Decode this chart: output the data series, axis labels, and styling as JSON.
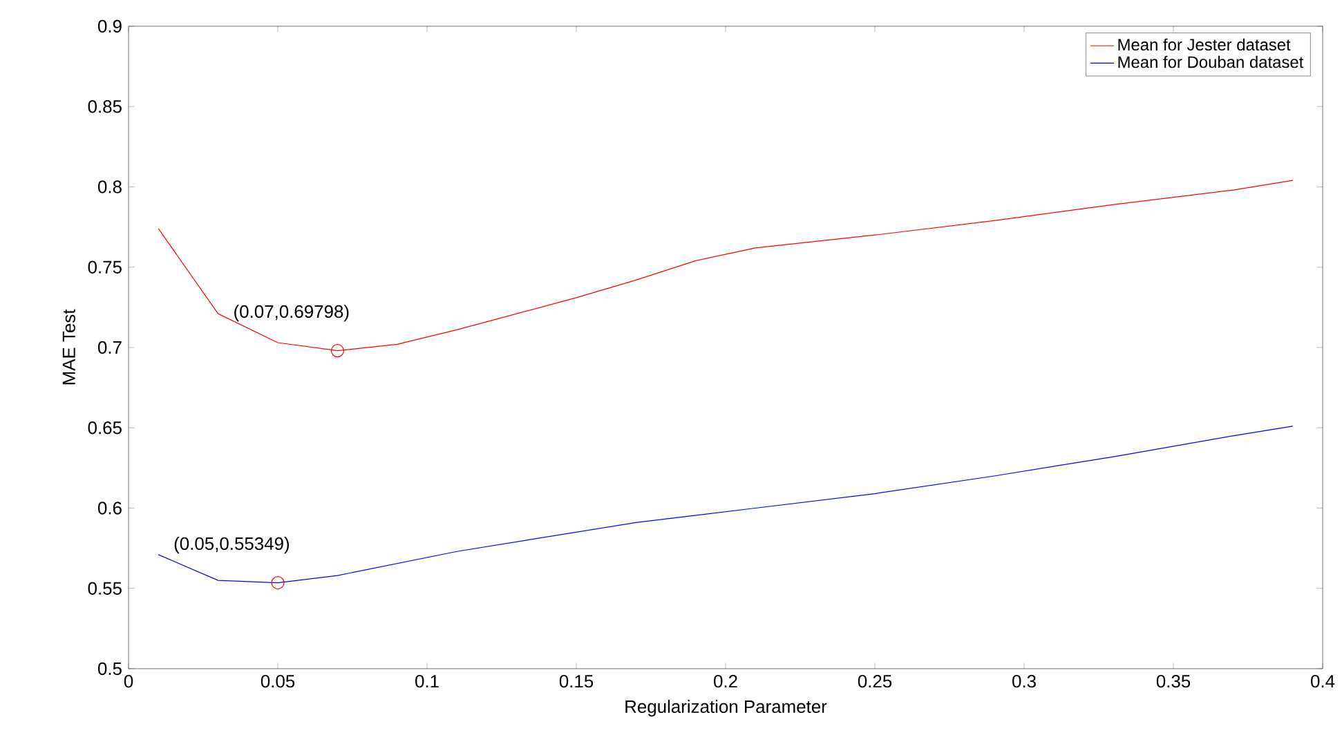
{
  "chart_data": {
    "type": "line",
    "xlabel": "Regularization Parameter",
    "ylabel": "MAE Test",
    "xlim": [
      0,
      0.4
    ],
    "xticks": [
      0,
      0.05,
      0.1,
      0.15,
      0.2,
      0.25,
      0.3,
      0.35,
      0.4
    ],
    "ylim": [
      0.5,
      0.9
    ],
    "yticks": [
      0.5,
      0.55,
      0.6,
      0.65,
      0.7,
      0.75,
      0.8,
      0.85,
      0.9
    ],
    "grid": false,
    "legend": "top right",
    "series": [
      {
        "name": "Mean for Jester dataset",
        "color": "#ff0000",
        "x": [
          0.01,
          0.03,
          0.05,
          0.07,
          0.09,
          0.11,
          0.13,
          0.15,
          0.17,
          0.19,
          0.21,
          0.25,
          0.29,
          0.33,
          0.37,
          0.39
        ],
        "values": [
          0.774,
          0.721,
          0.703,
          0.69798,
          0.702,
          0.711,
          0.721,
          0.731,
          0.742,
          0.754,
          0.762,
          0.77,
          0.779,
          0.789,
          0.798,
          0.804
        ]
      },
      {
        "name": "Mean for Douban dataset",
        "color": "#0000ff",
        "x": [
          0.01,
          0.03,
          0.05,
          0.07,
          0.11,
          0.17,
          0.21,
          0.25,
          0.29,
          0.33,
          0.37,
          0.39
        ],
        "values": [
          0.571,
          0.555,
          0.55349,
          0.558,
          0.573,
          0.591,
          0.6,
          0.609,
          0.62,
          0.632,
          0.645,
          0.651
        ]
      },
      {
        "type": "scatter",
        "color": "#ff0000",
        "marker": "circle",
        "x": [
          0.07
        ],
        "values": [
          0.69798
        ]
      },
      {
        "type": "scatter",
        "color": "#ff0000",
        "marker": "circle",
        "x": [
          0.05
        ],
        "values": [
          0.55349
        ]
      }
    ],
    "annotations": [
      {
        "text": "(0.07,0.69798)",
        "x": 0.07,
        "y": 0.69798
      },
      {
        "text": "(0.05,0.55349)",
        "x": 0.05,
        "y": 0.55349
      }
    ]
  }
}
